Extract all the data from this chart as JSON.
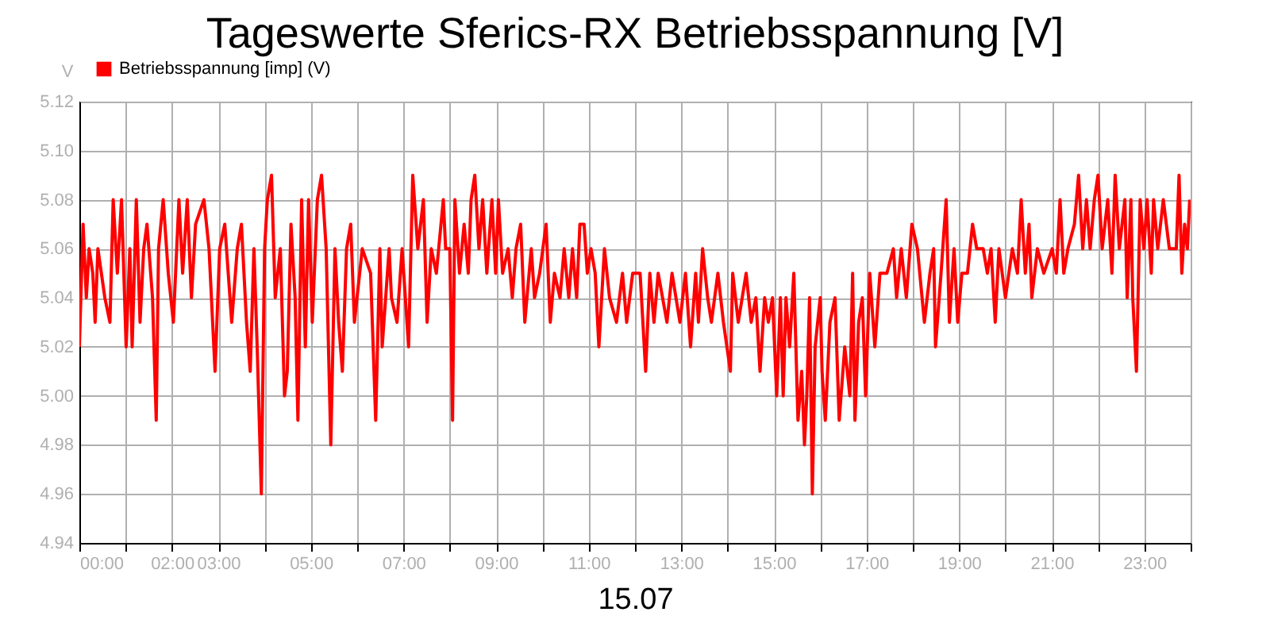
{
  "chart_data": {
    "type": "line",
    "title": "Tageswerte Sferics-RX Betriebsspannung [V]",
    "xlabel": "15.07",
    "ylabel": "V",
    "xlim": [
      0,
      24
    ],
    "ylim": [
      4.94,
      5.12
    ],
    "xticks": [
      {
        "value": 0,
        "label": "00:00"
      },
      {
        "value": 1,
        "label": null
      },
      {
        "value": 2,
        "label": "02:00"
      },
      {
        "value": 3,
        "label": "03:00"
      },
      {
        "value": 4,
        "label": null
      },
      {
        "value": 5,
        "label": "05:00"
      },
      {
        "value": 6,
        "label": null
      },
      {
        "value": 7,
        "label": "07:00"
      },
      {
        "value": 8,
        "label": null
      },
      {
        "value": 9,
        "label": "09:00"
      },
      {
        "value": 10,
        "label": null
      },
      {
        "value": 11,
        "label": "11:00"
      },
      {
        "value": 12,
        "label": null
      },
      {
        "value": 13,
        "label": "13:00"
      },
      {
        "value": 14,
        "label": null
      },
      {
        "value": 15,
        "label": "15:00"
      },
      {
        "value": 16,
        "label": null
      },
      {
        "value": 17,
        "label": "17:00"
      },
      {
        "value": 18,
        "label": null
      },
      {
        "value": 19,
        "label": "19:00"
      },
      {
        "value": 20,
        "label": null
      },
      {
        "value": 21,
        "label": "21:00"
      },
      {
        "value": 22,
        "label": null
      },
      {
        "value": 23,
        "label": "23:00"
      },
      {
        "value": 24,
        "label": null
      }
    ],
    "yticks": [
      4.94,
      4.96,
      4.98,
      {
        "value": 5.0,
        "label": "5.00"
      },
      5.02,
      5.04,
      5.06,
      5.08,
      {
        "value": 5.1,
        "label": "5.10"
      },
      5.12
    ],
    "grid": true,
    "legend": "top left",
    "marker": "none",
    "line_style": "solid",
    "series": [
      {
        "name": "Betriebsspannung [imp] (V)",
        "color": "#ff0000",
        "x": [
          0,
          0.08,
          0.15,
          0.21,
          0.29,
          0.34,
          0.4,
          0.55,
          0.66,
          0.73,
          0.82,
          0.91,
          1.01,
          1.09,
          1.14,
          1.23,
          1.31,
          1.39,
          1.46,
          1.58,
          1.66,
          1.71,
          1.81,
          1.92,
          2.03,
          2.15,
          2.23,
          2.33,
          2.42,
          2.51,
          2.69,
          2.8,
          2.93,
          3.03,
          3.14,
          3.29,
          3.41,
          3.5,
          3.61,
          3.69,
          3.77,
          3.84,
          3.93,
          4.0,
          4.06,
          4.15,
          4.23,
          4.34,
          4.43,
          4.49,
          4.57,
          4.66,
          4.72,
          4.8,
          4.88,
          4.95,
          5.03,
          5.14,
          5.23,
          5.33,
          5.43,
          5.52,
          5.6,
          5.68,
          5.77,
          5.86,
          5.94,
          6.11,
          6.29,
          6.4,
          6.49,
          6.54,
          6.69,
          6.74,
          6.86,
          6.97,
          7.11,
          7.2,
          7.31,
          7.43,
          7.51,
          7.6,
          7.71,
          7.86,
          7.91,
          8.0,
          8.06,
          8.11,
          8.21,
          8.31,
          8.4,
          8.46,
          8.54,
          8.63,
          8.71,
          8.8,
          8.91,
          8.99,
          9.05,
          9.14,
          9.26,
          9.35,
          9.43,
          9.53,
          9.62,
          9.76,
          9.83,
          9.94,
          10.08,
          10.17,
          10.26,
          10.38,
          10.47,
          10.57,
          10.65,
          10.74,
          10.81,
          10.9,
          10.97,
          11.05,
          11.14,
          11.22,
          11.34,
          11.45,
          11.6,
          11.73,
          11.82,
          11.95,
          12.11,
          12.23,
          12.32,
          12.41,
          12.5,
          12.69,
          12.8,
          12.97,
          13.09,
          13.2,
          13.31,
          13.37,
          13.46,
          13.57,
          13.65,
          13.79,
          13.91,
          14.06,
          14.11,
          14.23,
          14.4,
          14.51,
          14.61,
          14.7,
          14.8,
          14.88,
          14.97,
          15.06,
          15.14,
          15.2,
          15.26,
          15.34,
          15.43,
          15.52,
          15.6,
          15.66,
          15.71,
          15.77,
          15.83,
          15.89,
          16.0,
          16.04,
          16.11,
          16.21,
          16.32,
          16.41,
          16.53,
          16.64,
          16.7,
          16.75,
          16.83,
          16.91,
          16.98,
          17.07,
          17.18,
          17.29,
          17.44,
          17.58,
          17.65,
          17.75,
          17.86,
          17.98,
          18.1,
          18.25,
          18.37,
          18.45,
          18.49,
          18.61,
          18.72,
          18.79,
          18.89,
          18.97,
          19.06,
          19.18,
          19.29,
          19.38,
          19.52,
          19.61,
          19.69,
          19.78,
          19.86,
          20.0,
          20.15,
          20.26,
          20.34,
          20.43,
          20.51,
          20.57,
          20.69,
          20.83,
          21.01,
          21.1,
          21.18,
          21.26,
          21.35,
          21.49,
          21.58,
          21.67,
          21.75,
          21.83,
          21.92,
          22.0,
          22.09,
          22.21,
          22.3,
          22.37,
          22.46,
          22.58,
          22.63,
          22.71,
          22.75,
          22.83,
          22.91,
          22.99,
          23.06,
          23.15,
          23.2,
          23.29,
          23.41,
          23.54,
          23.69,
          23.75,
          23.81,
          23.87,
          23.93,
          23.98
        ],
        "values": [
          5.02,
          5.07,
          5.04,
          5.06,
          5.05,
          5.03,
          5.06,
          5.04,
          5.03,
          5.08,
          5.05,
          5.08,
          5.02,
          5.06,
          5.02,
          5.08,
          5.03,
          5.06,
          5.07,
          5.04,
          4.99,
          5.06,
          5.08,
          5.05,
          5.03,
          5.08,
          5.05,
          5.08,
          5.04,
          5.07,
          5.08,
          5.06,
          5.01,
          5.06,
          5.07,
          5.03,
          5.06,
          5.07,
          5.03,
          5.01,
          5.06,
          5.02,
          4.96,
          5.06,
          5.08,
          5.09,
          5.04,
          5.06,
          5.0,
          5.01,
          5.07,
          5.04,
          4.99,
          5.08,
          5.02,
          5.08,
          5.03,
          5.08,
          5.09,
          5.06,
          4.98,
          5.06,
          5.03,
          5.01,
          5.06,
          5.07,
          5.03,
          5.06,
          5.05,
          4.99,
          5.06,
          5.02,
          5.06,
          5.04,
          5.03,
          5.06,
          5.02,
          5.09,
          5.06,
          5.08,
          5.03,
          5.06,
          5.05,
          5.08,
          5.06,
          5.06,
          4.99,
          5.08,
          5.05,
          5.07,
          5.05,
          5.08,
          5.09,
          5.06,
          5.08,
          5.05,
          5.08,
          5.05,
          5.08,
          5.05,
          5.06,
          5.04,
          5.06,
          5.07,
          5.03,
          5.06,
          5.04,
          5.05,
          5.07,
          5.03,
          5.05,
          5.04,
          5.06,
          5.04,
          5.06,
          5.04,
          5.07,
          5.07,
          5.05,
          5.06,
          5.05,
          5.02,
          5.06,
          5.04,
          5.03,
          5.05,
          5.03,
          5.05,
          5.05,
          5.01,
          5.05,
          5.03,
          5.05,
          5.03,
          5.05,
          5.03,
          5.05,
          5.02,
          5.05,
          5.03,
          5.06,
          5.04,
          5.03,
          5.05,
          5.03,
          5.01,
          5.05,
          5.03,
          5.05,
          5.03,
          5.04,
          5.01,
          5.04,
          5.03,
          5.04,
          5.0,
          5.04,
          5.0,
          5.04,
          5.02,
          5.05,
          4.99,
          5.01,
          4.98,
          5.0,
          5.04,
          4.96,
          5.02,
          5.04,
          5.01,
          4.99,
          5.03,
          5.04,
          4.99,
          5.02,
          5.0,
          5.05,
          4.99,
          5.03,
          5.04,
          5.0,
          5.05,
          5.02,
          5.05,
          5.05,
          5.06,
          5.04,
          5.06,
          5.04,
          5.07,
          5.06,
          5.03,
          5.05,
          5.06,
          5.02,
          5.05,
          5.08,
          5.03,
          5.06,
          5.03,
          5.05,
          5.05,
          5.07,
          5.06,
          5.06,
          5.05,
          5.06,
          5.03,
          5.06,
          5.04,
          5.06,
          5.05,
          5.08,
          5.05,
          5.07,
          5.04,
          5.06,
          5.05,
          5.06,
          5.05,
          5.08,
          5.05,
          5.06,
          5.07,
          5.09,
          5.06,
          5.08,
          5.06,
          5.08,
          5.09,
          5.06,
          5.08,
          5.05,
          5.09,
          5.06,
          5.08,
          5.04,
          5.08,
          5.04,
          5.01,
          5.08,
          5.06,
          5.08,
          5.05,
          5.08,
          5.06,
          5.08,
          5.06,
          5.06,
          5.09,
          5.05,
          5.07,
          5.06,
          5.08
        ]
      }
    ]
  }
}
